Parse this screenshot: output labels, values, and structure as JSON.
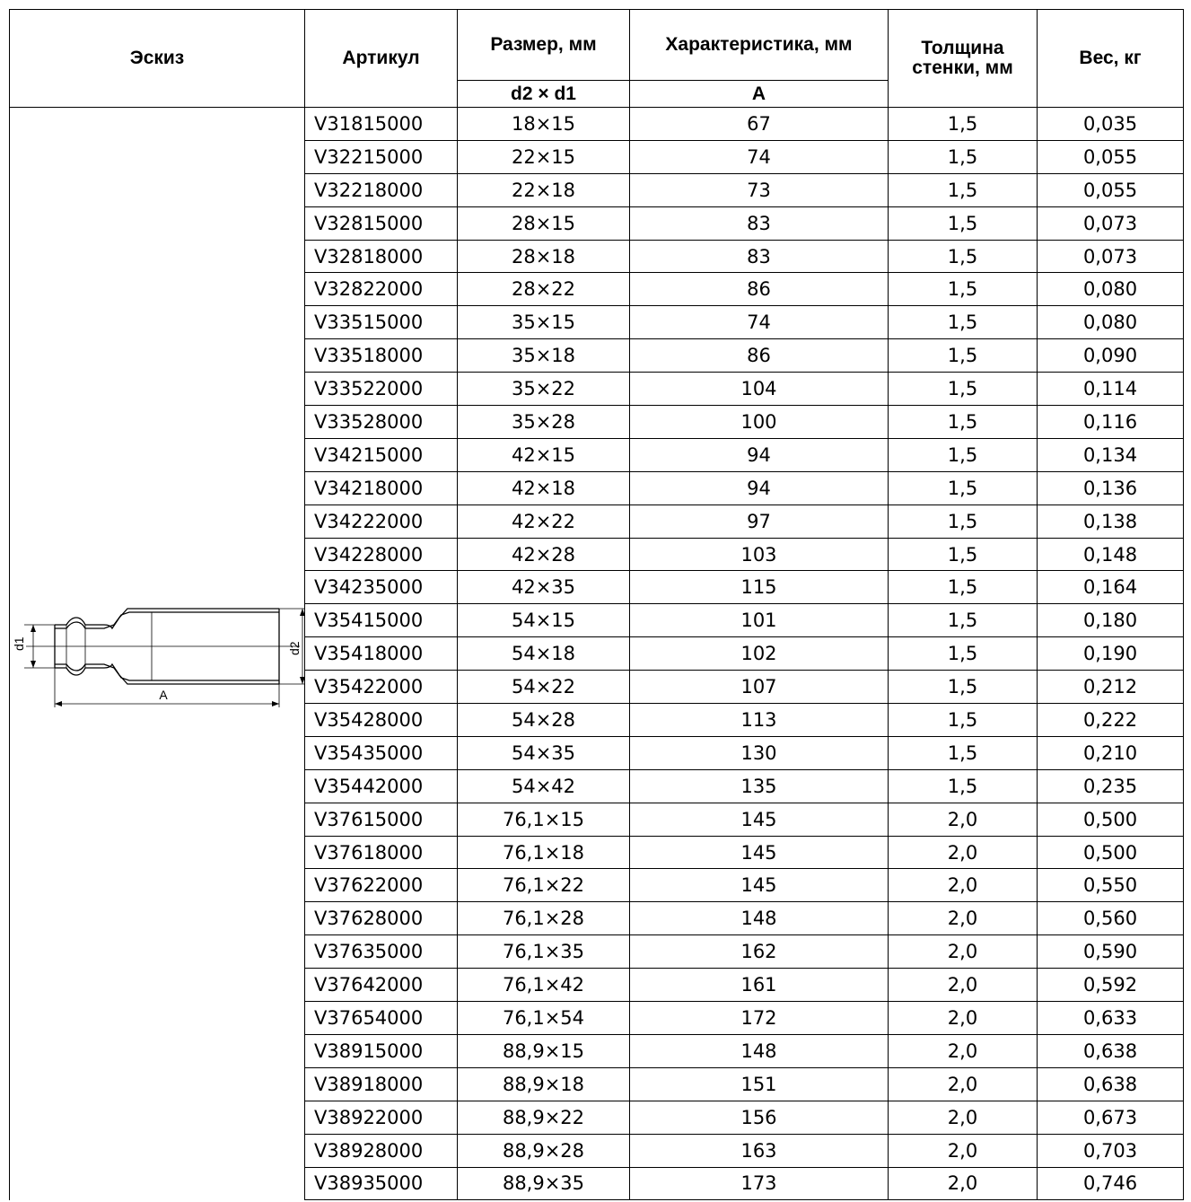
{
  "headers": {
    "sketch": "Эскиз",
    "article": "Артикул",
    "size": "Размер, мм",
    "size_sub": "d2 × d1",
    "char": "Характеристика, мм",
    "char_sub": "А",
    "wall": "Толщина стенки, мм",
    "weight": "Вес, кг"
  },
  "sketch_labels": {
    "d1": "d1",
    "d2": "d2",
    "a": "A"
  },
  "rows": [
    {
      "article": "V31815000",
      "size": "18×15",
      "a": "67",
      "wall": "1,5",
      "weight": "0,035"
    },
    {
      "article": "V32215000",
      "size": "22×15",
      "a": "74",
      "wall": "1,5",
      "weight": "0,055"
    },
    {
      "article": "V32218000",
      "size": "22×18",
      "a": "73",
      "wall": "1,5",
      "weight": "0,055"
    },
    {
      "article": "V32815000",
      "size": "28×15",
      "a": "83",
      "wall": "1,5",
      "weight": "0,073"
    },
    {
      "article": "V32818000",
      "size": "28×18",
      "a": "83",
      "wall": "1,5",
      "weight": "0,073"
    },
    {
      "article": "V32822000",
      "size": "28×22",
      "a": "86",
      "wall": "1,5",
      "weight": "0,080"
    },
    {
      "article": "V33515000",
      "size": "35×15",
      "a": "74",
      "wall": "1,5",
      "weight": "0,080"
    },
    {
      "article": "V33518000",
      "size": "35×18",
      "a": "86",
      "wall": "1,5",
      "weight": "0,090"
    },
    {
      "article": "V33522000",
      "size": "35×22",
      "a": "104",
      "wall": "1,5",
      "weight": "0,114"
    },
    {
      "article": "V33528000",
      "size": "35×28",
      "a": "100",
      "wall": "1,5",
      "weight": "0,116"
    },
    {
      "article": "V34215000",
      "size": "42×15",
      "a": "94",
      "wall": "1,5",
      "weight": "0,134"
    },
    {
      "article": "V34218000",
      "size": "42×18",
      "a": "94",
      "wall": "1,5",
      "weight": "0,136"
    },
    {
      "article": "V34222000",
      "size": "42×22",
      "a": "97",
      "wall": "1,5",
      "weight": "0,138"
    },
    {
      "article": "V34228000",
      "size": "42×28",
      "a": "103",
      "wall": "1,5",
      "weight": "0,148"
    },
    {
      "article": "V34235000",
      "size": "42×35",
      "a": "115",
      "wall": "1,5",
      "weight": "0,164"
    },
    {
      "article": "V35415000",
      "size": "54×15",
      "a": "101",
      "wall": "1,5",
      "weight": "0,180"
    },
    {
      "article": "V35418000",
      "size": "54×18",
      "a": "102",
      "wall": "1,5",
      "weight": "0,190"
    },
    {
      "article": "V35422000",
      "size": "54×22",
      "a": "107",
      "wall": "1,5",
      "weight": "0,212"
    },
    {
      "article": "V35428000",
      "size": "54×28",
      "a": "113",
      "wall": "1,5",
      "weight": "0,222"
    },
    {
      "article": "V35435000",
      "size": "54×35",
      "a": "130",
      "wall": "1,5",
      "weight": "0,210"
    },
    {
      "article": "V35442000",
      "size": "54×42",
      "a": "135",
      "wall": "1,5",
      "weight": "0,235"
    },
    {
      "article": "V37615000",
      "size": "76,1×15",
      "a": "145",
      "wall": "2,0",
      "weight": "0,500"
    },
    {
      "article": "V37618000",
      "size": "76,1×18",
      "a": "145",
      "wall": "2,0",
      "weight": "0,500"
    },
    {
      "article": "V37622000",
      "size": "76,1×22",
      "a": "145",
      "wall": "2,0",
      "weight": "0,550"
    },
    {
      "article": "V37628000",
      "size": "76,1×28",
      "a": "148",
      "wall": "2,0",
      "weight": "0,560"
    },
    {
      "article": "V37635000",
      "size": "76,1×35",
      "a": "162",
      "wall": "2,0",
      "weight": "0,590"
    },
    {
      "article": "V37642000",
      "size": "76,1×42",
      "a": "161",
      "wall": "2,0",
      "weight": "0,592"
    },
    {
      "article": "V37654000",
      "size": "76,1×54",
      "a": "172",
      "wall": "2,0",
      "weight": "0,633"
    },
    {
      "article": "V38915000",
      "size": "88,9×15",
      "a": "148",
      "wall": "2,0",
      "weight": "0,638"
    },
    {
      "article": "V38918000",
      "size": "88,9×18",
      "a": "151",
      "wall": "2,0",
      "weight": "0,638"
    },
    {
      "article": "V38922000",
      "size": "88,9×22",
      "a": "156",
      "wall": "2,0",
      "weight": "0,673"
    },
    {
      "article": "V38928000",
      "size": "88,9×28",
      "a": "163",
      "wall": "2,0",
      "weight": "0,703"
    },
    {
      "article": "V38935000",
      "size": "88,9×35",
      "a": "173",
      "wall": "2,0",
      "weight": "0,746"
    }
  ]
}
